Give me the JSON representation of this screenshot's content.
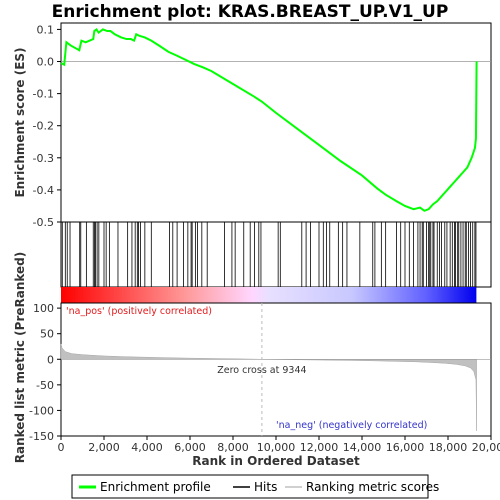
{
  "chart_data": {
    "type": "line",
    "title": "Enrichment plot: KRAS.BREAST_UP.V1_UP",
    "top_panel": {
      "ylabel": "Enrichment score (ES)",
      "ylim": [
        -0.5,
        0.12
      ],
      "yticks": [
        "0.1",
        "0.0",
        "-0.1",
        "-0.2",
        "-0.3",
        "-0.4",
        "-0.5"
      ],
      "ytick_values": [
        0.1,
        0.0,
        -0.1,
        -0.2,
        -0.3,
        -0.4,
        -0.5
      ],
      "series": [
        {
          "name": "Enrichment profile",
          "color": "#00ff00",
          "x": [
            0,
            150,
            250,
            450,
            850,
            950,
            1150,
            1500,
            1550,
            1650,
            1750,
            1950,
            2150,
            2300,
            2500,
            2800,
            3050,
            3250,
            3400,
            3500,
            3650,
            3900,
            4200,
            4600,
            5000,
            5400,
            5800,
            6200,
            6600,
            7000,
            8000,
            9000,
            9344,
            10000,
            11000,
            12000,
            13000,
            14000,
            14700,
            15100,
            15600,
            16000,
            16400,
            16700,
            16900,
            17100,
            17300,
            17500,
            17700,
            17900,
            18100,
            18300,
            18500,
            18700,
            18900,
            19100,
            19250,
            19300,
            19330
          ],
          "y": [
            -0.005,
            -0.01,
            0.06,
            0.05,
            0.035,
            0.065,
            0.06,
            0.07,
            0.095,
            0.1,
            0.09,
            0.1,
            0.095,
            0.095,
            0.085,
            0.075,
            0.07,
            0.07,
            0.065,
            0.085,
            0.08,
            0.075,
            0.065,
            0.048,
            0.03,
            0.018,
            0.005,
            -0.008,
            -0.018,
            -0.03,
            -0.07,
            -0.11,
            -0.125,
            -0.16,
            -0.21,
            -0.26,
            -0.31,
            -0.355,
            -0.395,
            -0.415,
            -0.435,
            -0.45,
            -0.46,
            -0.455,
            -0.465,
            -0.46,
            -0.445,
            -0.435,
            -0.42,
            -0.405,
            -0.39,
            -0.375,
            -0.36,
            -0.345,
            -0.33,
            -0.3,
            -0.27,
            -0.24,
            0.0
          ]
        }
      ]
    },
    "hits": {
      "name": "Hits",
      "x": [
        60,
        200,
        290,
        420,
        870,
        920,
        1180,
        1500,
        1560,
        1600,
        1680,
        1760,
        2000,
        2100,
        2250,
        2650,
        3100,
        3300,
        3450,
        3550,
        3600,
        3700,
        3900,
        4200,
        5050,
        5200,
        5400,
        5700,
        5900,
        6050,
        6100,
        6250,
        6350,
        6550,
        6800,
        7600,
        7950,
        8100,
        8500,
        8800,
        9000,
        9200,
        9300,
        10100,
        10200,
        11200,
        11400,
        11600,
        12000,
        12200,
        12350,
        12500,
        12900,
        13100,
        13300,
        13900,
        14500,
        14600,
        14900,
        15100,
        15600,
        15800,
        16000,
        16200,
        16400,
        16600,
        16700,
        16800,
        16850,
        17000,
        17100,
        17150,
        17200,
        17300,
        17350,
        17500,
        17600,
        17700,
        17850,
        17950,
        18100,
        18200,
        18300,
        18350,
        18450,
        18500,
        18600,
        18700,
        18800,
        18850,
        18950,
        19050,
        19150,
        19250,
        19300
      ]
    },
    "bottom_panel": {
      "ylabel": "Ranked list metric (PreRanked)",
      "ylim": [
        -150,
        110
      ],
      "yticks": [
        "100",
        "50",
        "0",
        "-50",
        "-100",
        "-150"
      ],
      "ytick_values": [
        100,
        50,
        0,
        -50,
        -100,
        -150
      ],
      "series": [
        {
          "name": "Ranking metric scores",
          "color": "#c0c0c0",
          "x": [
            0,
            50,
            200,
            500,
            1000,
            2000,
            3000,
            4000,
            5000,
            6000,
            7000,
            8000,
            9344,
            11000,
            13000,
            14500,
            15500,
            16500,
            17300,
            17900,
            18400,
            18800,
            19050,
            19200,
            19300,
            19330
          ],
          "y": [
            30,
            22,
            15,
            11,
            9,
            6.5,
            5,
            4,
            3,
            2.2,
            1.6,
            1,
            0,
            -1,
            -2,
            -3,
            -4,
            -5,
            -6.5,
            -8,
            -10,
            -13,
            -17,
            -24,
            -40,
            -140
          ]
        }
      ],
      "zero_cross_label": "Zero cross at 9344",
      "zero_cross": 9344,
      "pos_label": "'na_pos' (positively correlated)",
      "neg_label": "'na_neg' (negatively correlated)"
    },
    "x_axis": {
      "label": "Rank in Ordered Dataset",
      "xlim": [
        0,
        20000
      ],
      "ticks": [
        "0",
        "2,000",
        "4,000",
        "6,000",
        "8,000",
        "10,000",
        "12,000",
        "14,000",
        "16,000",
        "18,000",
        "20,000"
      ],
      "tick_values": [
        0,
        2000,
        4000,
        6000,
        8000,
        10000,
        12000,
        14000,
        16000,
        18000,
        20000
      ]
    },
    "legend": {
      "placement": "bottom",
      "entries": [
        "Enrichment profile",
        "Hits",
        "Ranking metric scores"
      ]
    },
    "colors": {
      "profile": "#00ff00",
      "hits": "#000000",
      "metric": "#c0c0c0",
      "pos_label": "#e41a1c",
      "neg_label": "#3333cc",
      "zero_line": "#cccccc"
    }
  }
}
